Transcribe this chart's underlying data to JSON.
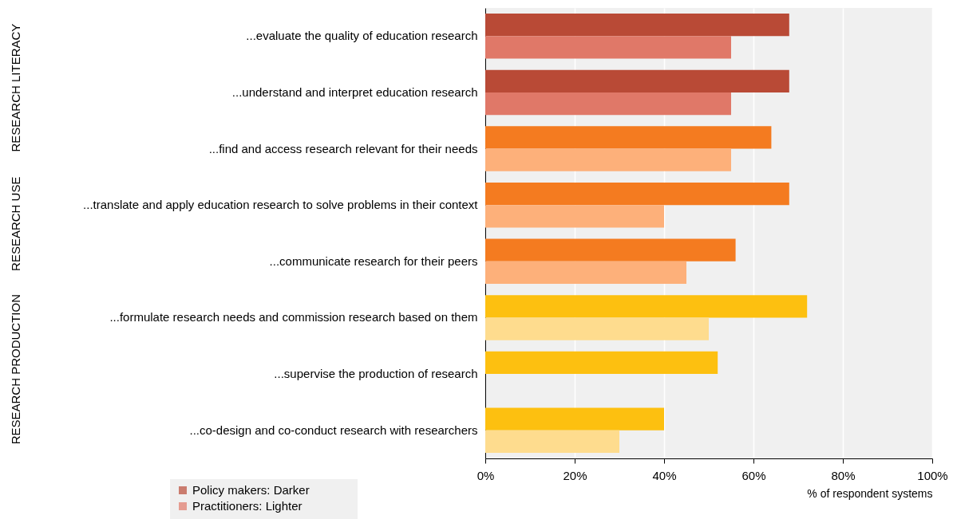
{
  "chart_data": {
    "type": "bar",
    "orientation": "horizontal",
    "xlabel": "% of respondent systems",
    "categories": [
      "...evaluate the quality of education research",
      "...understand and interpret education research",
      "...find and access research relevant for their needs",
      "...translate and apply education research to solve problems in their context",
      "...communicate research for their peers",
      "...formulate research needs and commission research based on them",
      "...supervise the production of research",
      "...co-design and co-conduct research with researchers"
    ],
    "series": [
      {
        "name": "Policy makers: Darker",
        "colors": [
          "#b94a36",
          "#b94a36",
          "#f47b20",
          "#f47b20",
          "#f47b20",
          "#fdc010",
          "#fdc010",
          "#fdc010"
        ],
        "values": [
          68,
          68,
          64,
          68,
          56,
          72,
          52,
          40
        ]
      },
      {
        "name": "Practitioners: Lighter",
        "colors": [
          "#e07868",
          "#e07868",
          "#fdb07a",
          "#fdb07a",
          "#fdb07a",
          "#fedc8e",
          null,
          "#fedc8e"
        ],
        "values": [
          55,
          55,
          55,
          40,
          45,
          50,
          null,
          30
        ]
      }
    ],
    "xlim": [
      0,
      100
    ],
    "xticks": [
      {
        "value": 0,
        "label": "0%"
      },
      {
        "value": 20,
        "label": "20%"
      },
      {
        "value": 40,
        "label": "40%"
      },
      {
        "value": 60,
        "label": "60%"
      },
      {
        "value": 80,
        "label": "80%"
      },
      {
        "value": 100,
        "label": "100%"
      }
    ],
    "grid": "x",
    "legend": "bottom left",
    "annotations": [
      "RESEARCH LITERACY",
      "RESEARCH USE",
      "RESEARCH PRODUCTION"
    ]
  }
}
